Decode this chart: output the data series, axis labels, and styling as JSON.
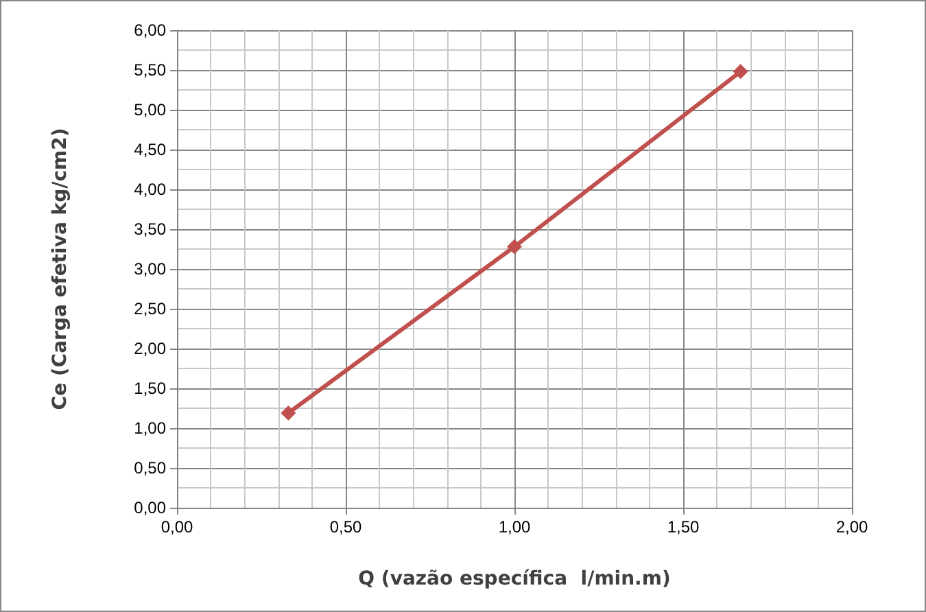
{
  "chart_data": {
    "type": "line",
    "xlabel": "Q (vazão específica  l/min.m)",
    "ylabel": "Ce (Carga efetiva kg/cm2)",
    "x": [
      0.33,
      1.0,
      1.67
    ],
    "series": [
      {
        "color": "#c0504d",
        "values": [
          1.19,
          3.28,
          5.48
        ]
      }
    ],
    "xlim": [
      0,
      2
    ],
    "xticks": [
      {
        "value": 0,
        "label": "0,00"
      },
      {
        "value": 0.5,
        "label": "0,50"
      },
      {
        "value": 1,
        "label": "1,00"
      },
      {
        "value": 1.5,
        "label": "1,50"
      },
      {
        "value": 2,
        "label": "2,00"
      }
    ],
    "ylim": [
      0,
      6
    ],
    "yticks": [
      {
        "value": 0,
        "label": "0,00"
      },
      {
        "value": 0.5,
        "label": "0,50"
      },
      {
        "value": 1,
        "label": "1,00"
      },
      {
        "value": 1.5,
        "label": "1,50"
      },
      {
        "value": 2,
        "label": "2,00"
      },
      {
        "value": 2.5,
        "label": "2,50"
      },
      {
        "value": 3,
        "label": "3,00"
      },
      {
        "value": 3.5,
        "label": "3,50"
      },
      {
        "value": 4,
        "label": "4,00"
      },
      {
        "value": 4.5,
        "label": "4,50"
      },
      {
        "value": 5,
        "label": "5,00"
      },
      {
        "value": 5.5,
        "label": "5,50"
      },
      {
        "value": 6,
        "label": "6,00"
      }
    ],
    "grid": true,
    "marker": "diamond",
    "line_style": "solid"
  }
}
